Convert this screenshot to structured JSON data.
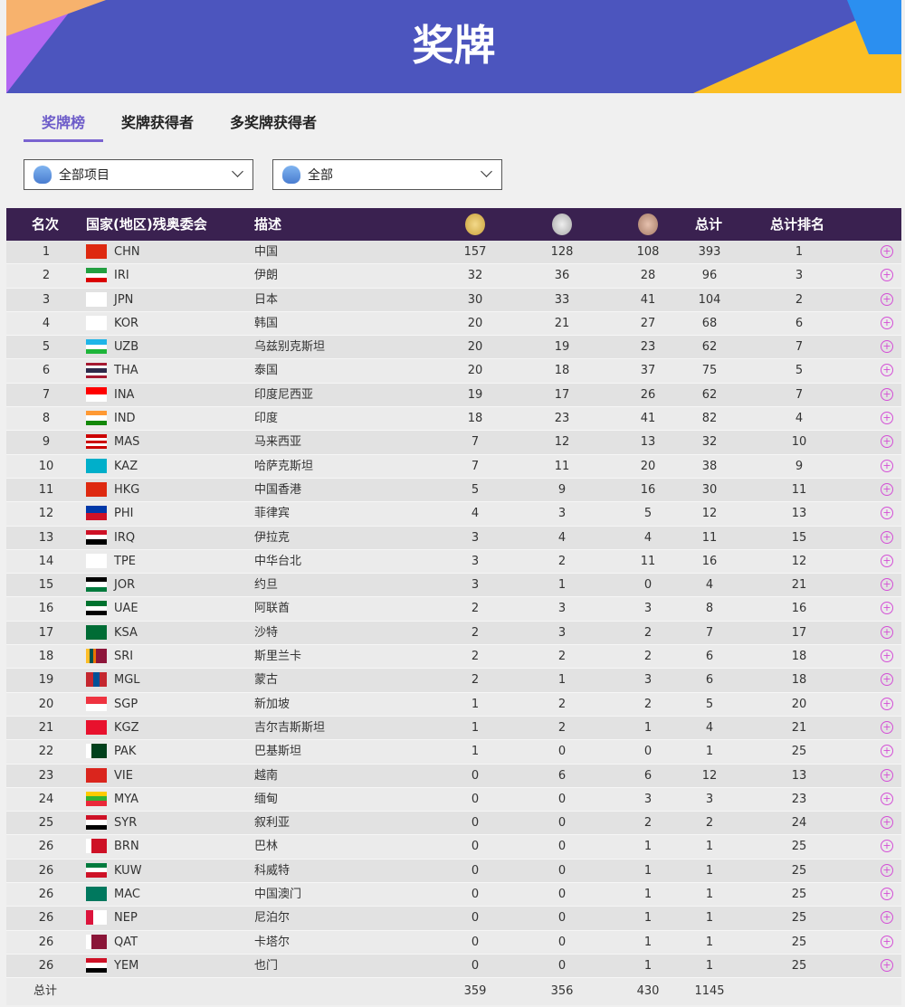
{
  "banner": {
    "title": "奖牌"
  },
  "tabs": [
    {
      "label": "奖牌榜",
      "active": true
    },
    {
      "label": "奖牌获得者"
    },
    {
      "label": "多奖牌获得者"
    }
  ],
  "filters": [
    {
      "value": "全部项目"
    },
    {
      "value": "全部"
    }
  ],
  "table": {
    "headers": {
      "rank": "名次",
      "npc": "国家(地区)残奥委会",
      "desc": "描述",
      "gold": "gold-medal-icon",
      "silver": "silver-medal-icon",
      "bronze": "bronze-medal-icon",
      "total": "总计",
      "total_rank": "总计排名"
    },
    "rows": [
      {
        "rank": "1",
        "code": "CHN",
        "name": "中国",
        "g": "157",
        "s": "128",
        "b": "108",
        "t": "393",
        "tr": "1",
        "flag": [
          "v",
          "#de2910"
        ]
      },
      {
        "rank": "2",
        "code": "IRI",
        "name": "伊朗",
        "g": "32",
        "s": "36",
        "b": "28",
        "t": "96",
        "tr": "3",
        "flag": [
          "h",
          "#239f40",
          "#ffffff",
          "#da0000"
        ]
      },
      {
        "rank": "3",
        "code": "JPN",
        "name": "日本",
        "g": "30",
        "s": "33",
        "b": "41",
        "t": "104",
        "tr": "2",
        "flag": [
          "v",
          "#ffffff"
        ]
      },
      {
        "rank": "4",
        "code": "KOR",
        "name": "韩国",
        "g": "20",
        "s": "21",
        "b": "27",
        "t": "68",
        "tr": "6",
        "flag": [
          "v",
          "#ffffff"
        ]
      },
      {
        "rank": "5",
        "code": "UZB",
        "name": "乌兹别克斯坦",
        "g": "20",
        "s": "19",
        "b": "23",
        "t": "62",
        "tr": "7",
        "flag": [
          "h",
          "#1eb5e8",
          "#ffffff",
          "#1eb53a"
        ]
      },
      {
        "rank": "6",
        "code": "THA",
        "name": "泰国",
        "g": "20",
        "s": "18",
        "b": "37",
        "t": "75",
        "tr": "5",
        "flag": [
          "h",
          "#a51931",
          "#f4f5f8",
          "#2d2a4a",
          "#2d2a4a",
          "#f4f5f8",
          "#a51931"
        ]
      },
      {
        "rank": "7",
        "code": "INA",
        "name": "印度尼西亚",
        "g": "19",
        "s": "17",
        "b": "26",
        "t": "62",
        "tr": "7",
        "flag": [
          "h",
          "#ff0000",
          "#ffffff"
        ]
      },
      {
        "rank": "8",
        "code": "IND",
        "name": "印度",
        "g": "18",
        "s": "23",
        "b": "41",
        "t": "82",
        "tr": "4",
        "flag": [
          "h",
          "#ff9933",
          "#ffffff",
          "#138808"
        ]
      },
      {
        "rank": "9",
        "code": "MAS",
        "name": "马来西亚",
        "g": "7",
        "s": "12",
        "b": "13",
        "t": "32",
        "tr": "10",
        "flag": [
          "h",
          "#cc0001",
          "#ffffff",
          "#cc0001",
          "#ffffff",
          "#cc0001"
        ]
      },
      {
        "rank": "10",
        "code": "KAZ",
        "name": "哈萨克斯坦",
        "g": "7",
        "s": "11",
        "b": "20",
        "t": "38",
        "tr": "9",
        "flag": [
          "v",
          "#00afca"
        ]
      },
      {
        "rank": "11",
        "code": "HKG",
        "name": "中国香港",
        "g": "5",
        "s": "9",
        "b": "16",
        "t": "30",
        "tr": "11",
        "flag": [
          "v",
          "#de2910"
        ]
      },
      {
        "rank": "12",
        "code": "PHI",
        "name": "菲律宾",
        "g": "4",
        "s": "3",
        "b": "5",
        "t": "12",
        "tr": "13",
        "flag": [
          "h",
          "#0038a8",
          "#ce1126"
        ]
      },
      {
        "rank": "13",
        "code": "IRQ",
        "name": "伊拉克",
        "g": "3",
        "s": "4",
        "b": "4",
        "t": "11",
        "tr": "15",
        "flag": [
          "h",
          "#ce1126",
          "#ffffff",
          "#000000"
        ]
      },
      {
        "rank": "14",
        "code": "TPE",
        "name": "中华台北",
        "g": "3",
        "s": "2",
        "b": "11",
        "t": "16",
        "tr": "12",
        "flag": [
          "v",
          "#ffffff"
        ]
      },
      {
        "rank": "15",
        "code": "JOR",
        "name": "约旦",
        "g": "3",
        "s": "1",
        "b": "0",
        "t": "4",
        "tr": "21",
        "flag": [
          "h",
          "#000000",
          "#ffffff",
          "#007a3d"
        ]
      },
      {
        "rank": "16",
        "code": "UAE",
        "name": "阿联酋",
        "g": "2",
        "s": "3",
        "b": "3",
        "t": "8",
        "tr": "16",
        "flag": [
          "h",
          "#00732f",
          "#ffffff",
          "#000000"
        ]
      },
      {
        "rank": "17",
        "code": "KSA",
        "name": "沙特",
        "g": "2",
        "s": "3",
        "b": "2",
        "t": "7",
        "tr": "17",
        "flag": [
          "v",
          "#006c35"
        ]
      },
      {
        "rank": "18",
        "code": "SRI",
        "name": "斯里兰卡",
        "g": "2",
        "s": "2",
        "b": "2",
        "t": "6",
        "tr": "18",
        "flag": [
          "v",
          "#ffbe29",
          "#00534e",
          "#eb7400",
          "#8d153a",
          "#8d153a",
          "#8d153a"
        ]
      },
      {
        "rank": "19",
        "code": "MGL",
        "name": "蒙古",
        "g": "2",
        "s": "1",
        "b": "3",
        "t": "6",
        "tr": "18",
        "flag": [
          "v",
          "#c4272f",
          "#015197",
          "#c4272f"
        ]
      },
      {
        "rank": "20",
        "code": "SGP",
        "name": "新加坡",
        "g": "1",
        "s": "2",
        "b": "2",
        "t": "5",
        "tr": "20",
        "flag": [
          "h",
          "#ef3340",
          "#ffffff"
        ]
      },
      {
        "rank": "21",
        "code": "KGZ",
        "name": "吉尔吉斯斯坦",
        "g": "1",
        "s": "2",
        "b": "1",
        "t": "4",
        "tr": "21",
        "flag": [
          "v",
          "#e8112d"
        ]
      },
      {
        "rank": "22",
        "code": "PAK",
        "name": "巴基斯坦",
        "g": "1",
        "s": "0",
        "b": "0",
        "t": "1",
        "tr": "25",
        "flag": [
          "v",
          "#ffffff",
          "#01411c",
          "#01411c",
          "#01411c"
        ]
      },
      {
        "rank": "23",
        "code": "VIE",
        "name": "越南",
        "g": "0",
        "s": "6",
        "b": "6",
        "t": "12",
        "tr": "13",
        "flag": [
          "v",
          "#da251d"
        ]
      },
      {
        "rank": "24",
        "code": "MYA",
        "name": "缅甸",
        "g": "0",
        "s": "0",
        "b": "3",
        "t": "3",
        "tr": "23",
        "flag": [
          "h",
          "#fecb00",
          "#34b233",
          "#ea2839"
        ]
      },
      {
        "rank": "25",
        "code": "SYR",
        "name": "叙利亚",
        "g": "0",
        "s": "0",
        "b": "2",
        "t": "2",
        "tr": "24",
        "flag": [
          "h",
          "#ce1126",
          "#ffffff",
          "#000000"
        ]
      },
      {
        "rank": "26",
        "code": "BRN",
        "name": "巴林",
        "g": "0",
        "s": "0",
        "b": "1",
        "t": "1",
        "tr": "25",
        "flag": [
          "v",
          "#ffffff",
          "#ce1126",
          "#ce1126",
          "#ce1126"
        ]
      },
      {
        "rank": "26",
        "code": "KUW",
        "name": "科威特",
        "g": "0",
        "s": "0",
        "b": "1",
        "t": "1",
        "tr": "25",
        "flag": [
          "h",
          "#007a3d",
          "#ffffff",
          "#ce1126"
        ]
      },
      {
        "rank": "26",
        "code": "MAC",
        "name": "中国澳门",
        "g": "0",
        "s": "0",
        "b": "1",
        "t": "1",
        "tr": "25",
        "flag": [
          "v",
          "#00785e"
        ]
      },
      {
        "rank": "26",
        "code": "NEP",
        "name": "尼泊尔",
        "g": "0",
        "s": "0",
        "b": "1",
        "t": "1",
        "tr": "25",
        "flag": [
          "v",
          "#dc143c",
          "#ffffff",
          "#ffffff"
        ]
      },
      {
        "rank": "26",
        "code": "QAT",
        "name": "卡塔尔",
        "g": "0",
        "s": "0",
        "b": "1",
        "t": "1",
        "tr": "25",
        "flag": [
          "v",
          "#ffffff",
          "#8a1538",
          "#8a1538",
          "#8a1538"
        ]
      },
      {
        "rank": "26",
        "code": "YEM",
        "name": "也门",
        "g": "0",
        "s": "0",
        "b": "1",
        "t": "1",
        "tr": "25",
        "flag": [
          "h",
          "#ce1126",
          "#ffffff",
          "#000000"
        ]
      }
    ],
    "footer": {
      "label": "总计",
      "g": "359",
      "s": "356",
      "b": "430",
      "t": "1145"
    }
  }
}
